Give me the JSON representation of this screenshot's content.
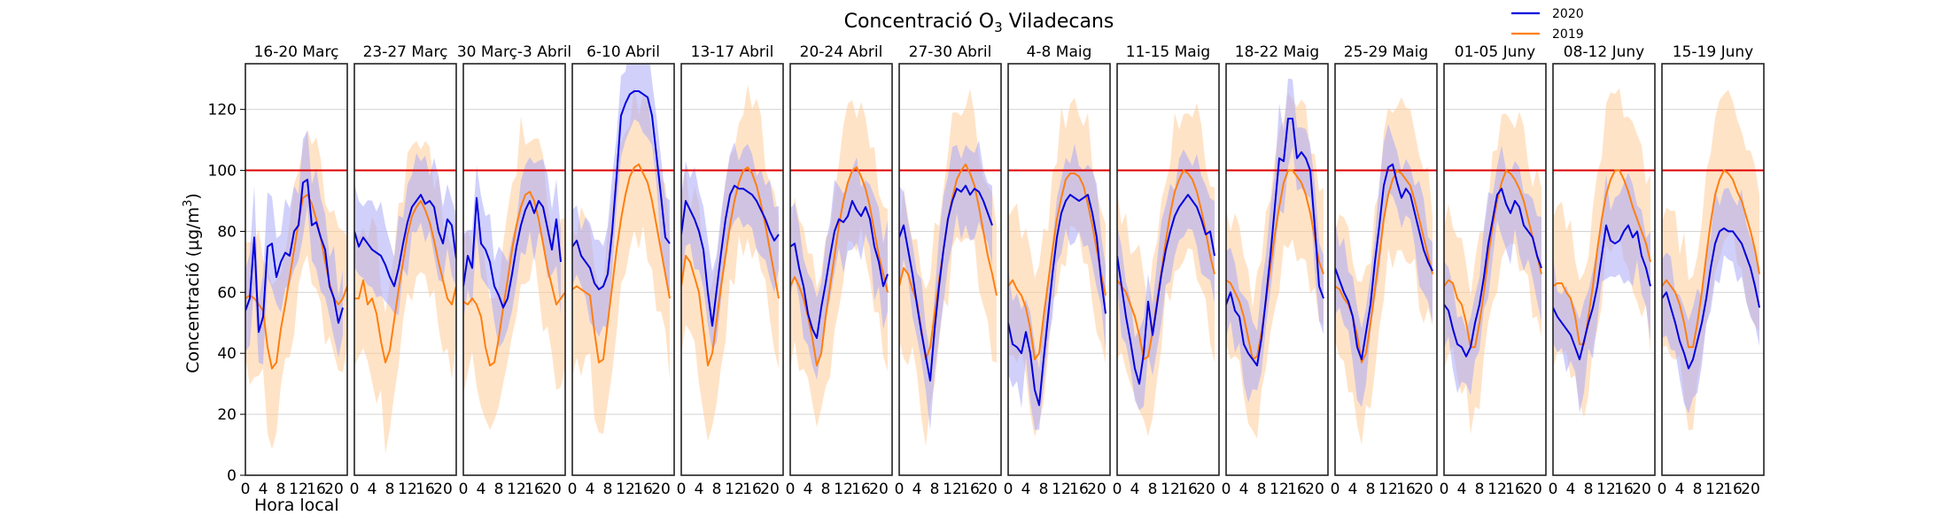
{
  "chart_data": {
    "type": "line",
    "title_main": "Concentració O",
    "title_sub": "3",
    "title_rest": " Viladecans",
    "ylabel_main": "Concentració (µg/m",
    "ylabel_sup": "3",
    "ylabel_end": ")",
    "xlabel": "Hora local",
    "ylim": [
      0,
      135
    ],
    "yticks": [
      0,
      20,
      40,
      60,
      80,
      100,
      120
    ],
    "xlim": [
      0,
      23
    ],
    "xticks": [
      0,
      4,
      8,
      12,
      16,
      20
    ],
    "threshold": 100,
    "grid": true,
    "legend_position": "top-right",
    "colors": {
      "s2020": "#0000dd",
      "s2019": "#ff7f0e",
      "band2020": "#aaaaf8",
      "band2019": "#ffcc99",
      "threshold": "#dd0000"
    },
    "series": [
      {
        "name": "2020",
        "color": "#0000dd"
      },
      {
        "name": "2019",
        "color": "#ff7f0e"
      }
    ],
    "panels": [
      {
        "title": "16-20 Març",
        "s2020": [
          54,
          58,
          78,
          47,
          52,
          75,
          76,
          65,
          70,
          73,
          72,
          80,
          82,
          96,
          97,
          82,
          83,
          78,
          74,
          62,
          58,
          50,
          55,
          null
        ],
        "s2019": [
          58,
          59,
          58,
          56,
          54,
          42,
          35,
          37,
          48,
          56,
          65,
          74,
          83,
          91,
          92,
          89,
          84,
          78,
          70,
          63,
          58,
          56,
          58,
          62
        ]
      },
      {
        "title": "23-27 Març",
        "s2020": [
          80,
          75,
          78,
          76,
          74,
          73,
          72,
          69,
          65,
          62,
          68,
          76,
          83,
          88,
          90,
          92,
          89,
          90,
          88,
          80,
          76,
          84,
          82,
          71
        ],
        "s2019": [
          58,
          58,
          64,
          56,
          58,
          53,
          44,
          37,
          41,
          51,
          61,
          70,
          79,
          85,
          88,
          90,
          87,
          83,
          77,
          70,
          64,
          58,
          56,
          62
        ]
      },
      {
        "title": "30 Març-3 Abril",
        "s2020": [
          62,
          72,
          68,
          91,
          76,
          74,
          70,
          62,
          59,
          55,
          58,
          66,
          75,
          82,
          87,
          90,
          86,
          90,
          88,
          81,
          74,
          84,
          70,
          null
        ],
        "s2019": [
          57,
          56,
          58,
          56,
          52,
          42,
          36,
          37,
          45,
          55,
          64,
          74,
          82,
          88,
          92,
          93,
          90,
          84,
          76,
          68,
          62,
          56,
          58,
          60
        ]
      },
      {
        "title": "6-10 Abril",
        "s2020": [
          75,
          77,
          72,
          70,
          68,
          63,
          61,
          62,
          66,
          80,
          98,
          118,
          122,
          125,
          126,
          126,
          125,
          124,
          118,
          105,
          92,
          78,
          76,
          null
        ],
        "s2019": [
          61,
          62,
          61,
          60,
          59,
          47,
          37,
          38,
          50,
          62,
          74,
          84,
          92,
          98,
          101,
          102,
          99,
          96,
          90,
          82,
          74,
          66,
          58,
          null
        ]
      },
      {
        "title": "13-17 Abril",
        "s2020": [
          79,
          90,
          87,
          84,
          80,
          74,
          60,
          49,
          61,
          73,
          84,
          92,
          95,
          94,
          94,
          93,
          92,
          90,
          87,
          84,
          80,
          77,
          79,
          null
        ],
        "s2019": [
          62,
          72,
          70,
          65,
          60,
          48,
          36,
          40,
          51,
          62,
          72,
          82,
          90,
          96,
          100,
          101,
          99,
          95,
          89,
          82,
          74,
          66,
          58,
          null
        ]
      },
      {
        "title": "20-24 Abril",
        "s2020": [
          75,
          76,
          68,
          62,
          53,
          48,
          45,
          55,
          63,
          72,
          80,
          84,
          83,
          85,
          90,
          87,
          85,
          88,
          84,
          75,
          70,
          62,
          66,
          null
        ],
        "s2019": [
          62,
          65,
          62,
          58,
          52,
          45,
          36,
          40,
          52,
          62,
          72,
          82,
          90,
          96,
          100,
          101,
          98,
          94,
          88,
          80,
          72,
          66,
          60,
          null
        ]
      },
      {
        "title": "27-30 Abril",
        "s2020": [
          78,
          82,
          74,
          66,
          56,
          47,
          39,
          31,
          48,
          62,
          74,
          84,
          90,
          94,
          93,
          95,
          92,
          94,
          93,
          90,
          86,
          82,
          null,
          null
        ],
        "s2019": [
          62,
          68,
          66,
          61,
          57,
          48,
          38,
          42,
          53,
          64,
          74,
          84,
          91,
          97,
          100,
          102,
          99,
          95,
          88,
          80,
          72,
          66,
          59,
          null
        ]
      },
      {
        "title": "4-8 Maig",
        "s2020": [
          50,
          43,
          42,
          40,
          47,
          40,
          28,
          23,
          38,
          52,
          66,
          78,
          86,
          90,
          92,
          91,
          90,
          91,
          92,
          86,
          78,
          64,
          53,
          null
        ],
        "s2019": [
          62,
          64,
          61,
          59,
          55,
          48,
          38,
          40,
          52,
          63,
          74,
          84,
          91,
          97,
          99,
          99,
          98,
          95,
          89,
          82,
          74,
          66,
          59,
          null
        ]
      },
      {
        "title": "11-15 Maig",
        "s2020": [
          72,
          62,
          52,
          44,
          35,
          30,
          40,
          57,
          46,
          56,
          66,
          74,
          80,
          85,
          88,
          90,
          92,
          90,
          88,
          84,
          79,
          80,
          72,
          null
        ],
        "s2019": [
          64,
          62,
          60,
          56,
          52,
          46,
          38,
          39,
          47,
          57,
          67,
          77,
          86,
          93,
          97,
          100,
          99,
          97,
          93,
          87,
          80,
          72,
          66,
          null
        ]
      },
      {
        "title": "18-22 Maig",
        "s2020": [
          56,
          60,
          54,
          52,
          43,
          40,
          38,
          36,
          45,
          58,
          72,
          88,
          104,
          103,
          117,
          117,
          104,
          106,
          104,
          100,
          82,
          62,
          58,
          null
        ],
        "s2019": [
          64,
          63,
          60,
          57,
          52,
          45,
          38,
          39,
          47,
          57,
          68,
          79,
          88,
          96,
          100,
          100,
          98,
          96,
          92,
          86,
          78,
          70,
          66,
          null
        ]
      },
      {
        "title": "25-29 Maig",
        "s2020": [
          68,
          64,
          60,
          57,
          52,
          42,
          38,
          47,
          56,
          70,
          82,
          95,
          101,
          102,
          96,
          91,
          94,
          92,
          86,
          80,
          74,
          70,
          67,
          null
        ],
        "s2019": [
          62,
          61,
          58,
          56,
          52,
          46,
          37,
          40,
          50,
          61,
          72,
          84,
          92,
          97,
          100,
          99,
          97,
          95,
          90,
          84,
          78,
          72,
          66,
          null
        ]
      },
      {
        "title": "01-05 Juny",
        "s2020": [
          56,
          54,
          48,
          43,
          42,
          39,
          42,
          50,
          56,
          65,
          76,
          84,
          92,
          94,
          89,
          86,
          90,
          88,
          82,
          80,
          78,
          72,
          68,
          null
        ],
        "s2019": [
          62,
          64,
          63,
          58,
          56,
          50,
          42,
          42,
          50,
          60,
          72,
          82,
          90,
          96,
          100,
          99,
          97,
          94,
          90,
          84,
          78,
          72,
          66,
          null
        ]
      },
      {
        "title": "08-12 Juny",
        "s2020": [
          55,
          52,
          50,
          48,
          46,
          42,
          38,
          44,
          50,
          55,
          62,
          72,
          82,
          77,
          76,
          77,
          80,
          82,
          78,
          80,
          72,
          68,
          62,
          null
        ],
        "s2019": [
          62,
          63,
          63,
          60,
          58,
          52,
          43,
          43,
          52,
          62,
          74,
          84,
          92,
          97,
          100,
          100,
          97,
          93,
          88,
          84,
          80,
          76,
          70,
          null
        ]
      },
      {
        "title": "15-19 Juny",
        "s2020": [
          58,
          60,
          55,
          50,
          44,
          40,
          35,
          38,
          44,
          50,
          58,
          68,
          76,
          80,
          81,
          80,
          80,
          78,
          76,
          72,
          68,
          62,
          55,
          null
        ],
        "s2019": [
          62,
          64,
          62,
          60,
          56,
          50,
          42,
          42,
          50,
          60,
          72,
          83,
          92,
          97,
          100,
          99,
          97,
          93,
          90,
          85,
          80,
          74,
          66,
          null
        ]
      }
    ]
  }
}
